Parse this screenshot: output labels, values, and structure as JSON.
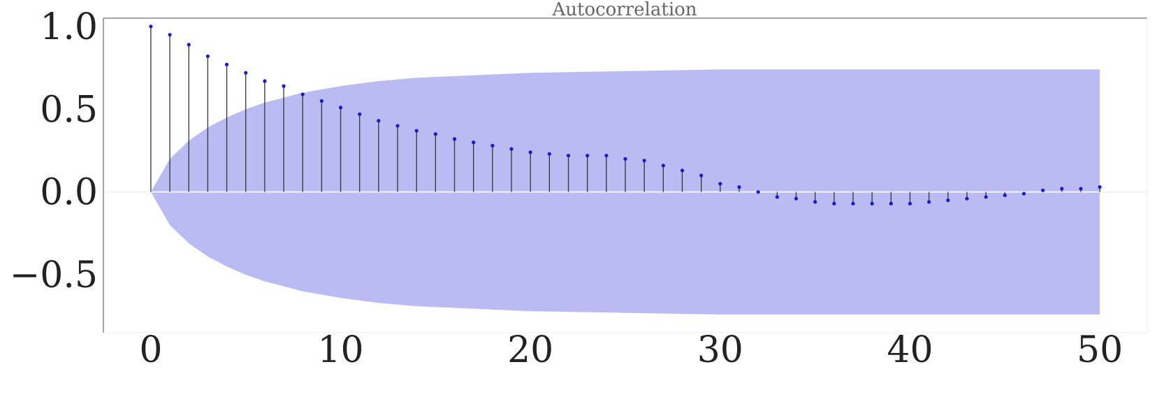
{
  "chart_data": {
    "type": "stem",
    "title": "Autocorrelation",
    "xlabel": "",
    "ylabel": "",
    "xlim": [
      -2.5,
      52.5
    ],
    "ylim": [
      -0.85,
      1.05
    ],
    "x_ticks": [
      0,
      10,
      20,
      30,
      40,
      50
    ],
    "x_tick_labels": [
      "0",
      "10",
      "20",
      "30",
      "40",
      "50"
    ],
    "y_ticks": [
      1.0,
      0.5,
      0.0,
      -0.5
    ],
    "y_tick_labels": [
      "1.0",
      "0.5",
      "0.0",
      "−0.5"
    ],
    "grid": false,
    "series": [
      {
        "name": "autocorrelation",
        "x": [
          0,
          1,
          2,
          3,
          4,
          5,
          6,
          7,
          8,
          9,
          10,
          11,
          12,
          13,
          14,
          15,
          16,
          17,
          18,
          19,
          20,
          21,
          22,
          23,
          24,
          25,
          26,
          27,
          28,
          29,
          30,
          31,
          32,
          33,
          34,
          35,
          36,
          37,
          38,
          39,
          40,
          41,
          42,
          43,
          44,
          45,
          46,
          47,
          48,
          49,
          50
        ],
        "values": [
          1.0,
          0.95,
          0.89,
          0.82,
          0.77,
          0.72,
          0.67,
          0.64,
          0.59,
          0.55,
          0.51,
          0.47,
          0.43,
          0.4,
          0.37,
          0.35,
          0.32,
          0.3,
          0.28,
          0.26,
          0.24,
          0.23,
          0.22,
          0.22,
          0.22,
          0.2,
          0.19,
          0.16,
          0.13,
          0.1,
          0.05,
          0.03,
          0.0,
          -0.03,
          -0.04,
          -0.06,
          -0.07,
          -0.07,
          -0.07,
          -0.07,
          -0.07,
          -0.06,
          -0.05,
          -0.04,
          -0.03,
          -0.02,
          -0.01,
          0.01,
          0.02,
          0.02,
          0.03
        ]
      }
    ],
    "confidence_band": {
      "name": "confidence interval",
      "x": [
        0,
        1,
        2,
        3,
        4,
        5,
        6,
        7,
        8,
        9,
        10,
        12,
        14,
        16,
        18,
        20,
        25,
        30,
        35,
        40,
        45,
        50
      ],
      "upper": [
        0.0,
        0.2,
        0.31,
        0.39,
        0.45,
        0.5,
        0.54,
        0.57,
        0.6,
        0.62,
        0.64,
        0.67,
        0.69,
        0.7,
        0.71,
        0.72,
        0.73,
        0.74,
        0.74,
        0.74,
        0.74,
        0.74
      ],
      "lower": [
        0.0,
        -0.2,
        -0.31,
        -0.39,
        -0.45,
        -0.5,
        -0.54,
        -0.57,
        -0.6,
        -0.62,
        -0.64,
        -0.67,
        -0.69,
        -0.7,
        -0.71,
        -0.72,
        -0.73,
        -0.74,
        -0.74,
        -0.74,
        -0.74,
        -0.74
      ]
    },
    "colors": {
      "band": "#bbbbf4",
      "stem": "#333333",
      "marker": "#1a1acc",
      "axis": "#888888",
      "zero_line": "#f4f4f4"
    }
  }
}
